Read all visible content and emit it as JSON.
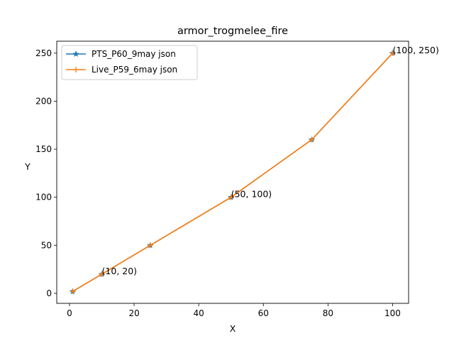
{
  "chart_data": {
    "type": "line",
    "title": "armor_trogmelee_fire",
    "xlabel": "X",
    "ylabel": "Y",
    "xlim": [
      -3.95,
      104.95
    ],
    "ylim": [
      -10.4,
      262.4
    ],
    "xticks": [
      0,
      20,
      40,
      60,
      80,
      100
    ],
    "yticks": [
      0,
      50,
      100,
      150,
      200,
      250
    ],
    "grid": false,
    "legend_position": "top-left",
    "series": [
      {
        "name": "PTS_P60_9may json",
        "color": "#1f77b4",
        "marker": "star",
        "x": [
          1,
          10,
          25,
          50,
          75,
          100
        ],
        "y": [
          2,
          20,
          50,
          100,
          160,
          250
        ]
      },
      {
        "name": "Live_P59_6may json",
        "color": "#ff7f0e",
        "marker": "plus",
        "x": [
          1,
          10,
          25,
          50,
          75,
          100
        ],
        "y": [
          2,
          20,
          50,
          100,
          160,
          250
        ]
      }
    ],
    "annotations": [
      {
        "text": "(10, 20)",
        "x": 10,
        "y": 20
      },
      {
        "text": "(50, 100)",
        "x": 50,
        "y": 100
      },
      {
        "text": "(100, 250)",
        "x": 100,
        "y": 250
      }
    ]
  }
}
